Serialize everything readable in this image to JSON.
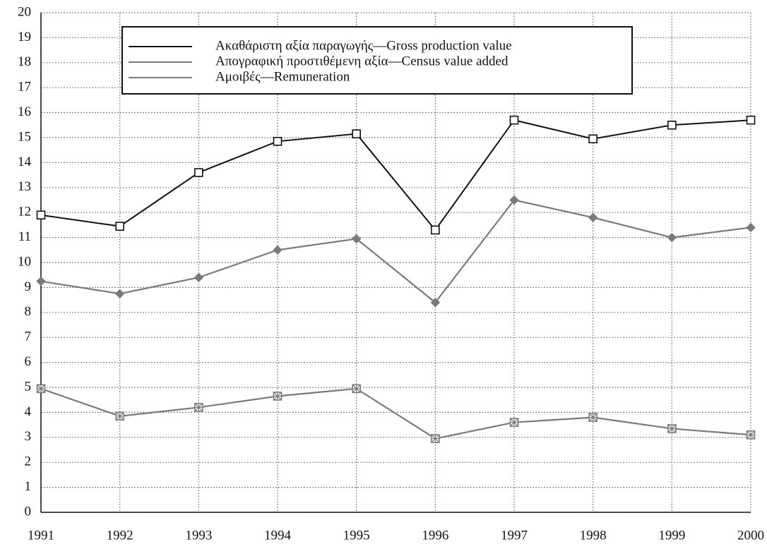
{
  "chart_data": {
    "type": "line",
    "x": [
      1991,
      1992,
      1993,
      1994,
      1995,
      1996,
      1997,
      1998,
      1999,
      2000
    ],
    "xlim": [
      1991,
      2000
    ],
    "xticks": [
      1991,
      1992,
      1993,
      1994,
      1995,
      1996,
      1997,
      1998,
      1999,
      2000
    ],
    "ylim": [
      0,
      20
    ],
    "yticks": [
      0,
      1,
      2,
      3,
      4,
      5,
      6,
      7,
      8,
      9,
      10,
      11,
      12,
      13,
      14,
      15,
      16,
      17,
      18,
      19,
      20
    ],
    "grid": true,
    "legend": "top",
    "series": [
      {
        "name": "Ακαθάριστη αξία παραγωγής—Gross production value",
        "color": "#111111",
        "marker": "square",
        "values": [
          11.9,
          11.45,
          13.6,
          14.85,
          15.15,
          11.3,
          15.7,
          14.95,
          15.5,
          15.7
        ]
      },
      {
        "name": "Απογραφική προστιθέμενη αξία—Census value added",
        "color": "#7a7a7a",
        "marker": "diamond",
        "values": [
          9.25,
          8.75,
          9.4,
          10.5,
          10.95,
          8.4,
          12.5,
          11.8,
          11.0,
          11.4
        ]
      },
      {
        "name": "Αμοιβές—Remuneration",
        "color": "#7a7a7a",
        "marker": "square-x",
        "values": [
          4.95,
          3.85,
          4.2,
          4.65,
          4.95,
          2.95,
          3.6,
          3.8,
          3.35,
          3.1
        ]
      }
    ]
  }
}
